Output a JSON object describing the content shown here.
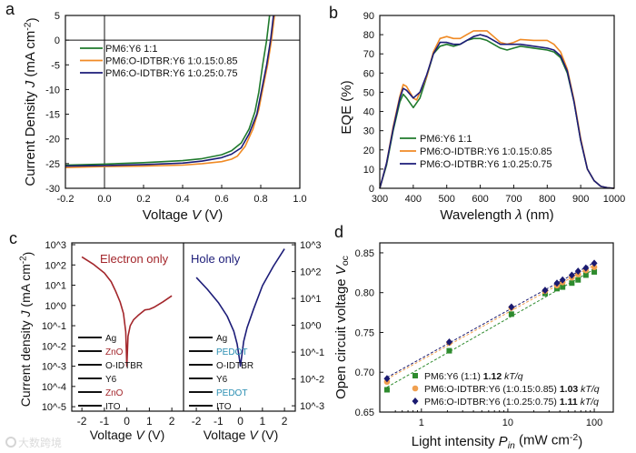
{
  "colors": {
    "green": "#1f7a2c",
    "orange": "#f08a24",
    "navy": "#1c1c78",
    "red": "#a3262b",
    "teal": "#2b8fb3",
    "d_green": "#2e8b2e",
    "d_orange": "#f0a050",
    "d_navy": "#1a1a70"
  },
  "watermark": "大数跨境",
  "chart_data": [
    {
      "panel": "a",
      "type": "line",
      "xlabel": [
        {
          "t": "Voltage "
        },
        {
          "t": "V",
          "i": 1
        },
        {
          "t": " (V)"
        }
      ],
      "ylabel": [
        {
          "t": "Current Density "
        },
        {
          "t": "J",
          "i": 1
        },
        {
          "t": " (mA cm"
        },
        {
          "t": "-2",
          "sup": 1
        },
        {
          "t": ")"
        }
      ],
      "xlim": [
        -0.2,
        1.0
      ],
      "ylim": [
        -30,
        5
      ],
      "xticks": [
        -0.2,
        0,
        0.2,
        0.4,
        0.6,
        0.8,
        1.0
      ],
      "xtick_labels": [
        "-0.2",
        "0.0",
        "0.2",
        "0.4",
        "0.6",
        "0.8",
        "1.0"
      ],
      "yticks": [
        -30,
        -25,
        -20,
        -15,
        -10,
        -5,
        0,
        5
      ],
      "ytick_labels": [
        "-30",
        "-25",
        "-20",
        "-15",
        "-10",
        "-5",
        "0",
        "5"
      ],
      "legend_position": "upper-left",
      "series": [
        {
          "name": "PM6:Y6 1:1",
          "color": "green",
          "x": [
            -0.2,
            0,
            0.2,
            0.4,
            0.5,
            0.6,
            0.65,
            0.7,
            0.74,
            0.77,
            0.79,
            0.81,
            0.83,
            0.845
          ],
          "y": [
            -25.3,
            -25.1,
            -24.8,
            -24.4,
            -24.0,
            -23.2,
            -22.4,
            -20.8,
            -18,
            -14.5,
            -10.5,
            -5,
            0,
            5
          ]
        },
        {
          "name": "PM6:O-IDTBR:Y6 1:0.15:0.85",
          "color": "orange",
          "x": [
            -0.2,
            0,
            0.2,
            0.4,
            0.5,
            0.6,
            0.65,
            0.68,
            0.72,
            0.76,
            0.79,
            0.81,
            0.835,
            0.855,
            0.87
          ],
          "y": [
            -25.8,
            -25.6,
            -25.5,
            -25.3,
            -25.0,
            -24.6,
            -24.1,
            -23.5,
            -21.5,
            -18,
            -14,
            -10,
            -5,
            0,
            5
          ]
        },
        {
          "name": "PM6:O-IDTBR:Y6 1:0.25:0.75",
          "color": "navy",
          "x": [
            -0.2,
            0,
            0.2,
            0.4,
            0.5,
            0.6,
            0.65,
            0.7,
            0.74,
            0.78,
            0.8,
            0.83,
            0.85,
            0.865
          ],
          "y": [
            -25.5,
            -25.4,
            -25.2,
            -24.9,
            -24.5,
            -23.8,
            -23.1,
            -21.8,
            -19,
            -15,
            -11,
            -5,
            0,
            5
          ]
        }
      ]
    },
    {
      "panel": "b",
      "type": "line",
      "xlabel": [
        {
          "t": "Wavelength "
        },
        {
          "t": "λ",
          "i": 1
        },
        {
          "t": " (nm)"
        }
      ],
      "ylabel": [
        {
          "t": "EQE (%)"
        }
      ],
      "xlim": [
        300,
        1000
      ],
      "ylim": [
        0,
        90
      ],
      "xticks": [
        300,
        400,
        500,
        600,
        700,
        800,
        900,
        1000
      ],
      "xtick_labels": [
        "300",
        "400",
        "500",
        "600",
        "700",
        "800",
        "900",
        "1000"
      ],
      "yticks": [
        0,
        10,
        20,
        30,
        40,
        50,
        60,
        70,
        80,
        90
      ],
      "ytick_labels": [
        "0",
        "10",
        "20",
        "30",
        "40",
        "50",
        "60",
        "70",
        "80",
        "90"
      ],
      "legend_position": "lower-left",
      "series": [
        {
          "name": "PM6:Y6 1:1",
          "color": "green",
          "x": [
            300,
            320,
            340,
            360,
            370,
            380,
            400,
            420,
            440,
            460,
            480,
            500,
            520,
            540,
            560,
            580,
            600,
            620,
            640,
            660,
            680,
            700,
            720,
            760,
            800,
            820,
            840,
            860,
            880,
            900,
            920,
            940,
            960,
            980,
            1000
          ],
          "y": [
            0,
            12,
            30,
            45,
            49,
            47,
            42,
            47,
            58,
            70,
            74,
            75,
            74,
            75,
            77,
            78,
            78,
            77,
            75,
            73,
            72,
            73,
            74,
            73,
            72,
            71,
            68,
            60,
            45,
            25,
            10,
            4,
            1,
            0.3,
            0
          ]
        },
        {
          "name": "PM6:O-IDTBR:Y6 1:0.15:0.85",
          "color": "orange",
          "x": [
            300,
            320,
            340,
            360,
            370,
            380,
            400,
            410,
            440,
            460,
            480,
            500,
            520,
            540,
            560,
            580,
            600,
            620,
            640,
            660,
            680,
            700,
            720,
            760,
            800,
            820,
            840,
            860,
            880,
            900,
            920,
            940,
            960,
            980,
            1000
          ],
          "y": [
            0,
            13,
            32,
            48,
            54,
            53,
            47,
            46,
            58,
            71,
            78,
            79,
            78,
            78,
            80,
            82,
            82,
            82,
            79,
            76,
            75,
            76,
            77.5,
            77,
            77,
            75,
            71,
            62,
            46,
            26,
            10,
            4,
            1,
            0.3,
            0
          ]
        },
        {
          "name": "PM6:O-IDTBR:Y6 1:0.25:0.75",
          "color": "navy",
          "x": [
            300,
            320,
            340,
            360,
            370,
            380,
            400,
            420,
            440,
            460,
            480,
            500,
            520,
            540,
            560,
            580,
            600,
            620,
            640,
            660,
            680,
            700,
            720,
            760,
            800,
            820,
            840,
            860,
            880,
            900,
            920,
            940,
            960,
            980,
            1000
          ],
          "y": [
            0,
            13,
            31,
            47,
            52,
            51,
            47,
            50,
            59,
            70,
            76,
            76,
            75,
            75,
            77,
            79,
            80,
            79,
            77,
            75,
            75,
            75,
            75,
            74,
            73,
            72,
            69,
            61,
            45,
            25,
            10,
            4,
            1,
            0.3,
            0
          ]
        }
      ]
    },
    {
      "panel": "c",
      "type": "line",
      "ylabel": [
        {
          "t": "Current density "
        },
        {
          "t": "J",
          "i": 1
        },
        {
          "t": " (mA cm"
        },
        {
          "t": "-2",
          "sup": 1
        },
        {
          "t": ")"
        }
      ],
      "subplots": [
        {
          "title": "Electron only",
          "title_color": "red",
          "xlabel": [
            {
              "t": "Voltage "
            },
            {
              "t": "V",
              "i": 1
            },
            {
              "t": " (V)"
            }
          ],
          "yscale": "log",
          "ylim_exp": [
            -5.22,
            3.09
          ],
          "xlim": [
            -2.45,
            2.52
          ],
          "xticks": [
            -2,
            -1,
            0,
            1,
            2
          ],
          "xtick_labels": [
            "-2",
            "-1",
            "0",
            "1",
            "2"
          ],
          "yticks_exp": [
            -5,
            -4,
            -3,
            -2,
            -1,
            0,
            1,
            2,
            3
          ],
          "ytick_labels": [
            "10^-5",
            "10^-4",
            "10^-3",
            "10^-2",
            "10^-1",
            "10^0",
            "10^1",
            "10^2",
            "10^3"
          ],
          "series": [
            {
              "name": "Electron only",
              "color": "red",
              "x": [
                -2,
                -1.5,
                -1,
                -0.7,
                -0.5,
                -0.3,
                -0.15,
                -0.05,
                0,
                0.05,
                0.15,
                0.3,
                0.5,
                0.8,
                1.0,
                1.2,
                1.6,
                2.0
              ],
              "y": [
                250,
                110,
                40,
                15,
                5,
                1.5,
                0.4,
                0.05,
                0.001,
                0.03,
                0.1,
                0.2,
                0.32,
                0.6,
                0.65,
                0.8,
                1.5,
                3
              ]
            }
          ],
          "device_stack": [
            {
              "label": "Ag",
              "color": "#111"
            },
            {
              "label": "ZnO",
              "color": "red"
            },
            {
              "label": "O-IDTBR",
              "color": "#111"
            },
            {
              "label": "Y6",
              "color": "#111"
            },
            {
              "label": "ZnO",
              "color": "red"
            },
            {
              "label": "ITO",
              "color": "#111"
            }
          ]
        },
        {
          "title": "Hole only",
          "title_color": "navy",
          "xlabel": [
            {
              "t": "Voltage "
            },
            {
              "t": "V",
              "i": 1
            },
            {
              "t": " (V)"
            }
          ],
          "yscale": "log",
          "ylim_exp": [
            -3.2,
            3.07
          ],
          "xlim": [
            -2.58,
            2.49
          ],
          "xticks": [
            -2,
            -1,
            0,
            1,
            2
          ],
          "xtick_labels": [
            "-2",
            "-1",
            "0",
            "1",
            "2"
          ],
          "yticks_exp": [
            -3,
            -2,
            -1,
            0,
            1,
            2,
            3
          ],
          "ytick_labels": [
            "10^-3",
            "10^-2",
            "10^-1",
            "10^0",
            "10^1",
            "10^2",
            "10^3"
          ],
          "series": [
            {
              "name": "Hole only",
              "color": "navy",
              "x": [
                -2,
                -1.5,
                -1,
                -0.6,
                -0.3,
                -0.15,
                -0.05,
                0,
                0.05,
                0.15,
                0.3,
                0.6,
                1.0,
                1.5,
                2.0
              ],
              "y": [
                60,
                22,
                7,
                2.2,
                0.6,
                0.2,
                0.06,
                0.03,
                0.06,
                0.25,
                0.8,
                4,
                30,
                160,
                700
              ]
            }
          ],
          "device_stack": [
            {
              "label": "Ag",
              "color": "#111"
            },
            {
              "label": "PEDOT",
              "color": "teal"
            },
            {
              "label": "O-IDTBR",
              "color": "#111"
            },
            {
              "label": "Y6",
              "color": "#111"
            },
            {
              "label": "PEDOT",
              "color": "teal"
            },
            {
              "label": "ITO",
              "color": "#111"
            }
          ]
        }
      ]
    },
    {
      "panel": "d",
      "type": "scatter",
      "xlabel": [
        {
          "t": "Light intensity "
        },
        {
          "t": "P",
          "i": 1
        },
        {
          "t": "in",
          "sub": 1,
          "i": 1
        },
        {
          "t": " (mW cm"
        },
        {
          "t": "-2",
          "sup": 1
        },
        {
          "t": ")"
        }
      ],
      "ylabel": [
        {
          "t": "Open circuit voltage "
        },
        {
          "t": "V",
          "i": 1
        },
        {
          "t": "oc",
          "sub": 1
        }
      ],
      "xscale": "log",
      "xlim": [
        0.33,
        166
      ],
      "ylim": [
        0.65,
        0.8625
      ],
      "xticks": [
        1,
        10,
        100
      ],
      "xtick_labels": [
        "1",
        "10",
        "100"
      ],
      "yticks": [
        0.65,
        0.7,
        0.75,
        0.8,
        0.85
      ],
      "ytick_labels": [
        "0.65",
        "0.70",
        "0.75",
        "0.80",
        "0.85"
      ],
      "legend_position": "lower-right",
      "x": [
        0.4,
        2.1,
        11,
        27,
        37,
        43,
        55,
        65,
        80,
        100
      ],
      "series": [
        {
          "name": "PM6:Y6 (1:1) ",
          "slope": "1.12",
          "unit": "kT/q",
          "marker": "square",
          "color": "d_green",
          "y": [
            0.678,
            0.727,
            0.773,
            0.799,
            0.805,
            0.807,
            0.812,
            0.816,
            0.822,
            0.826
          ]
        },
        {
          "name": "PM6:O-IDTBR:Y6 (1:0.15:0.85) ",
          "slope": "1.03",
          "unit": "kT/q",
          "marker": "circle",
          "color": "d_orange",
          "y": [
            0.688,
            0.737,
            0.781,
            0.802,
            0.809,
            0.813,
            0.819,
            0.823,
            0.828,
            0.832
          ]
        },
        {
          "name": "PM6:O-IDTBR:Y6 (1:0.25:0.75) ",
          "slope": "1.11",
          "unit": "kT/q",
          "marker": "diamond",
          "color": "d_navy",
          "y": [
            0.692,
            0.738,
            0.782,
            0.803,
            0.812,
            0.816,
            0.822,
            0.827,
            0.831,
            0.837
          ]
        }
      ]
    }
  ],
  "panel_letters": [
    "a",
    "b",
    "c",
    "d"
  ]
}
